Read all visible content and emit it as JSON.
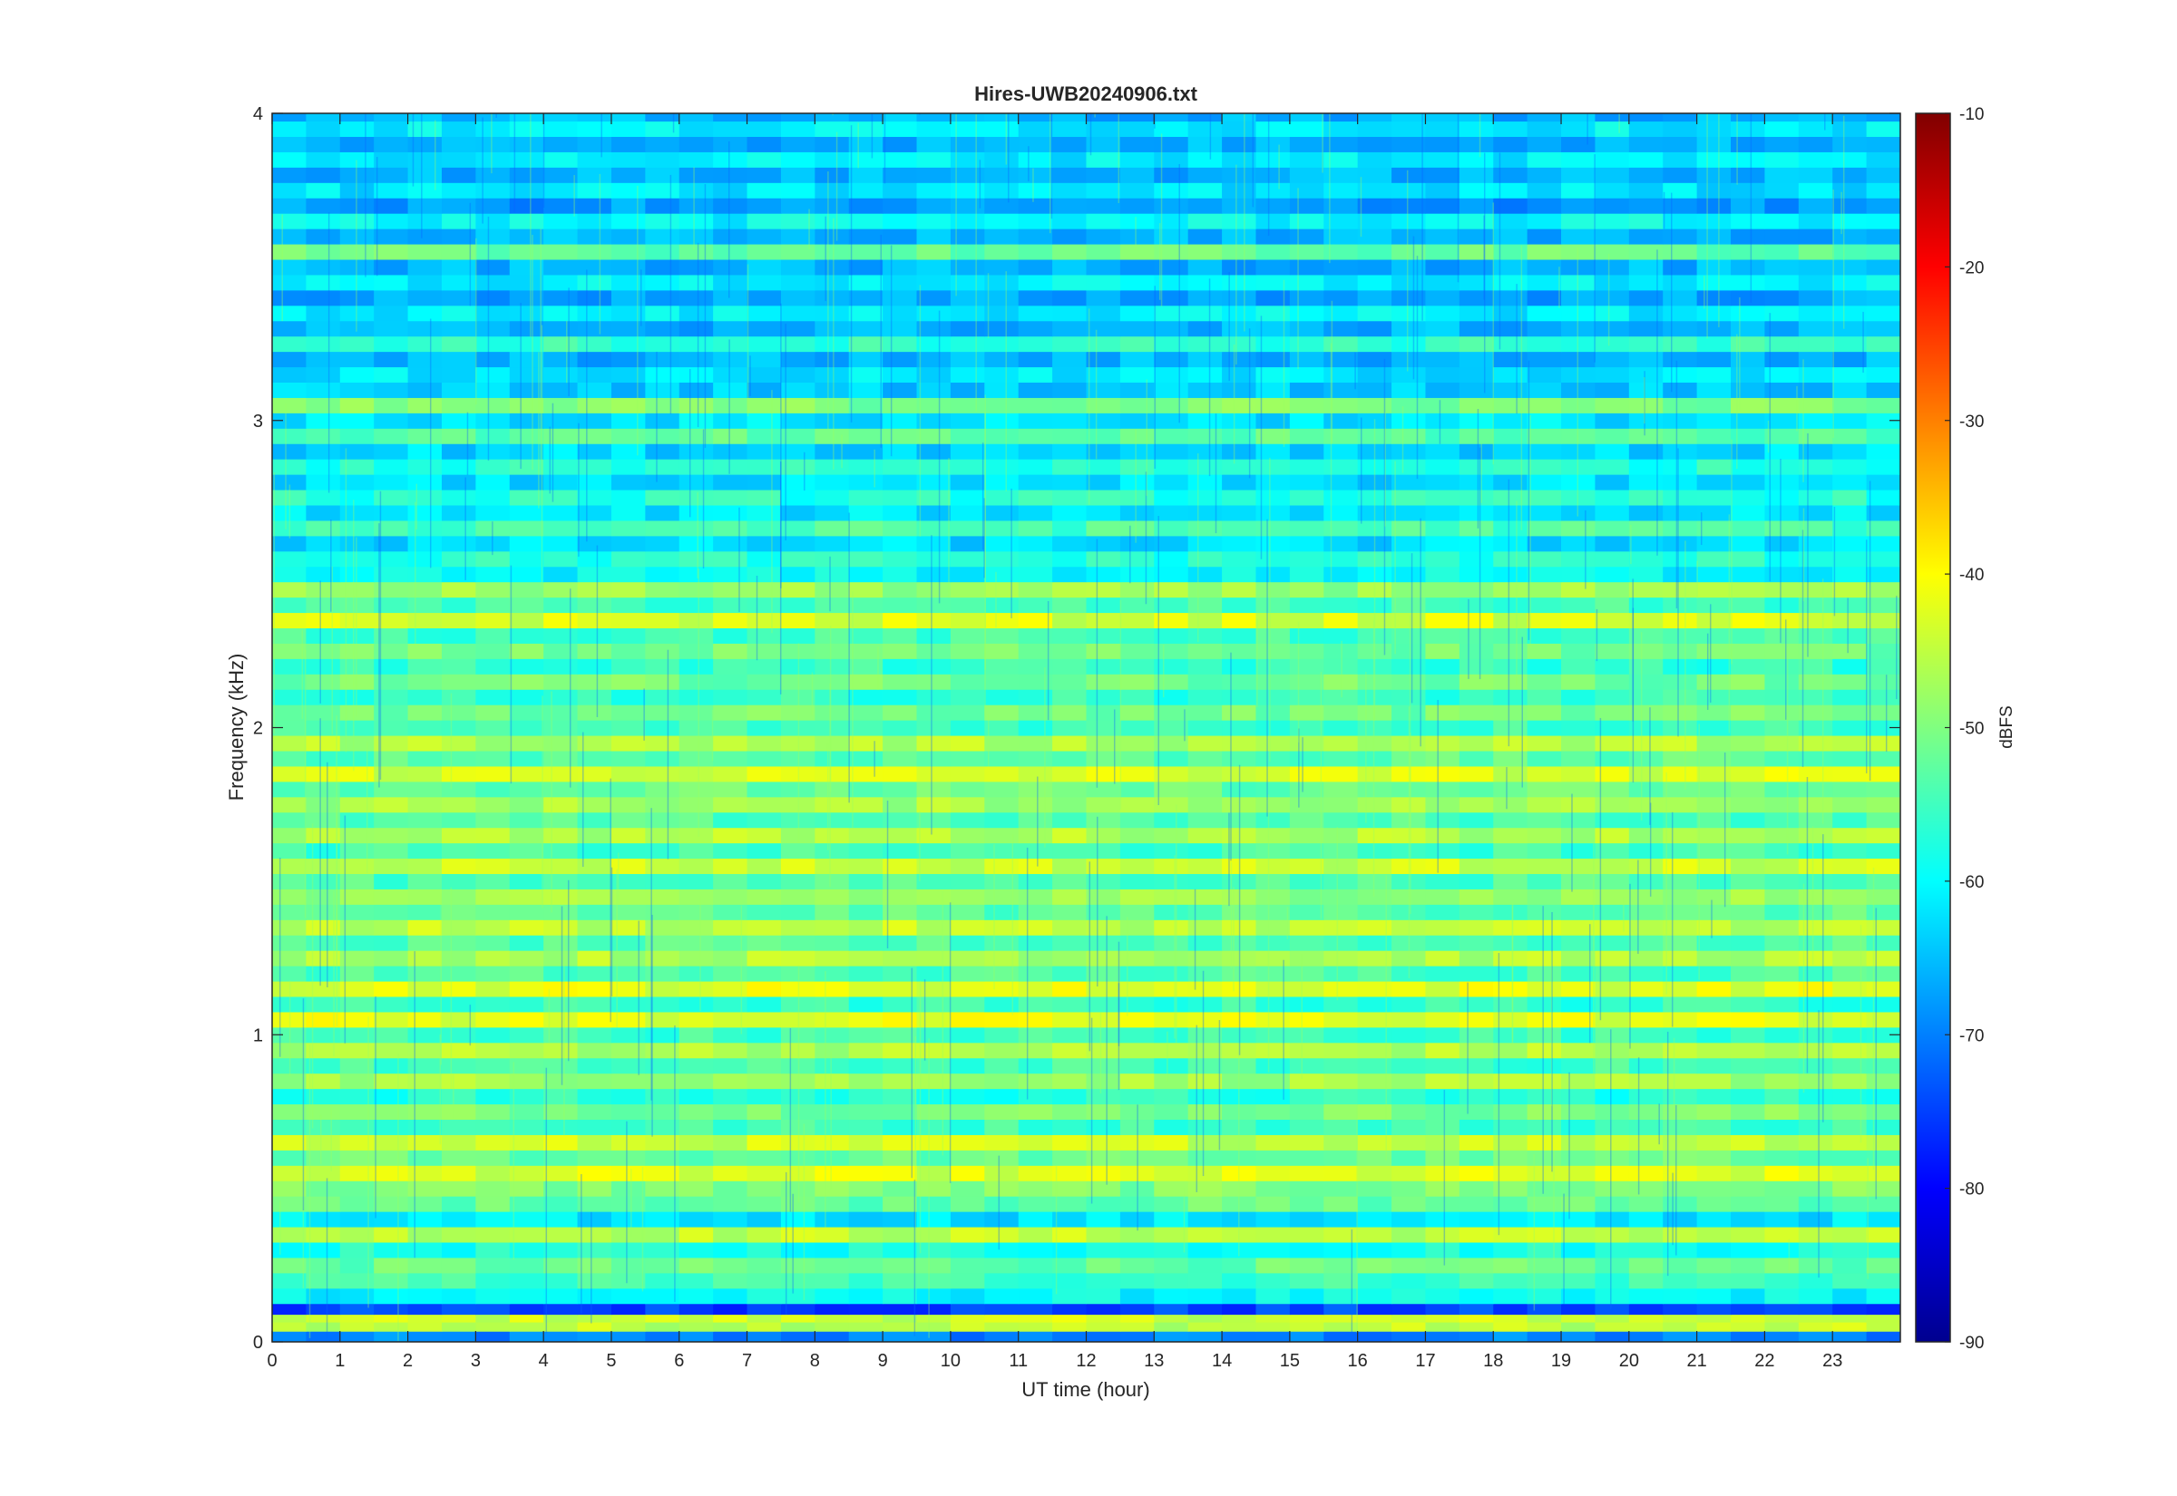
{
  "chart_data": {
    "type": "heatmap",
    "title": "Hires-UWB20240906.txt",
    "xlabel": "UT time (hour)",
    "ylabel": "Frequency (kHz)",
    "xlim": [
      0,
      24
    ],
    "ylim": [
      0,
      4
    ],
    "x_ticks": [
      0,
      1,
      2,
      3,
      4,
      5,
      6,
      7,
      8,
      9,
      10,
      11,
      12,
      13,
      14,
      15,
      16,
      17,
      18,
      19,
      20,
      21,
      22,
      23
    ],
    "y_ticks": [
      0,
      1,
      2,
      3,
      4
    ],
    "colorbar": {
      "label": "dBFS",
      "colormap": "jet",
      "clim": [
        -90,
        -10
      ],
      "ticks": [
        -10,
        -20,
        -30,
        -40,
        -50,
        -60,
        -70,
        -80,
        -90
      ],
      "stops": [
        "#00008f",
        "#0000ff",
        "#0080ff",
        "#00ffff",
        "#80ff80",
        "#ffff00",
        "#ff8000",
        "#ff0000",
        "#800000"
      ]
    },
    "grid": false,
    "legend": "none",
    "bands_note_free": true,
    "bands": [
      {
        "f": 0.02,
        "db": -70
      },
      {
        "f": 0.05,
        "db": -45
      },
      {
        "f": 0.08,
        "db": -44
      },
      {
        "f": 0.1,
        "db": -75
      },
      {
        "f": 0.15,
        "db": -60
      },
      {
        "f": 0.2,
        "db": -55
      },
      {
        "f": 0.25,
        "db": -52
      },
      {
        "f": 0.3,
        "db": -58
      },
      {
        "f": 0.35,
        "db": -45
      },
      {
        "f": 0.4,
        "db": -62
      },
      {
        "f": 0.45,
        "db": -52
      },
      {
        "f": 0.5,
        "db": -50
      },
      {
        "f": 0.55,
        "db": -43
      },
      {
        "f": 0.6,
        "db": -52
      },
      {
        "f": 0.65,
        "db": -44
      },
      {
        "f": 0.7,
        "db": -55
      },
      {
        "f": 0.75,
        "db": -50
      },
      {
        "f": 0.8,
        "db": -57
      },
      {
        "f": 0.85,
        "db": -47
      },
      {
        "f": 0.9,
        "db": -55
      },
      {
        "f": 0.95,
        "db": -46
      },
      {
        "f": 1.0,
        "db": -55
      },
      {
        "f": 1.05,
        "db": -42
      },
      {
        "f": 1.1,
        "db": -56
      },
      {
        "f": 1.15,
        "db": -42
      },
      {
        "f": 1.2,
        "db": -54
      },
      {
        "f": 1.25,
        "db": -46
      },
      {
        "f": 1.3,
        "db": -54
      },
      {
        "f": 1.35,
        "db": -45
      },
      {
        "f": 1.4,
        "db": -53
      },
      {
        "f": 1.45,
        "db": -48
      },
      {
        "f": 1.5,
        "db": -54
      },
      {
        "f": 1.55,
        "db": -44
      },
      {
        "f": 1.6,
        "db": -55
      },
      {
        "f": 1.65,
        "db": -46
      },
      {
        "f": 1.7,
        "db": -54
      },
      {
        "f": 1.75,
        "db": -47
      },
      {
        "f": 1.8,
        "db": -52
      },
      {
        "f": 1.85,
        "db": -43
      },
      {
        "f": 1.9,
        "db": -53
      },
      {
        "f": 1.95,
        "db": -46
      },
      {
        "f": 2.0,
        "db": -55
      },
      {
        "f": 2.05,
        "db": -51
      },
      {
        "f": 2.1,
        "db": -56
      },
      {
        "f": 2.15,
        "db": -51
      },
      {
        "f": 2.2,
        "db": -56
      },
      {
        "f": 2.25,
        "db": -51
      },
      {
        "f": 2.3,
        "db": -55
      },
      {
        "f": 2.35,
        "db": -43
      },
      {
        "f": 2.4,
        "db": -55
      },
      {
        "f": 2.45,
        "db": -48
      },
      {
        "f": 2.5,
        "db": -60
      },
      {
        "f": 2.55,
        "db": -57
      },
      {
        "f": 2.6,
        "db": -63
      },
      {
        "f": 2.65,
        "db": -54
      },
      {
        "f": 2.7,
        "db": -62
      },
      {
        "f": 2.75,
        "db": -57
      },
      {
        "f": 2.8,
        "db": -63
      },
      {
        "f": 2.85,
        "db": -57
      },
      {
        "f": 2.9,
        "db": -63
      },
      {
        "f": 2.95,
        "db": -53
      },
      {
        "f": 3.0,
        "db": -62
      },
      {
        "f": 3.05,
        "db": -50
      },
      {
        "f": 3.1,
        "db": -64
      },
      {
        "f": 3.15,
        "db": -62
      },
      {
        "f": 3.2,
        "db": -66
      },
      {
        "f": 3.25,
        "db": -56
      },
      {
        "f": 3.3,
        "db": -66
      },
      {
        "f": 3.35,
        "db": -61
      },
      {
        "f": 3.4,
        "db": -67
      },
      {
        "f": 3.45,
        "db": -61
      },
      {
        "f": 3.5,
        "db": -66
      },
      {
        "f": 3.55,
        "db": -52
      },
      {
        "f": 3.6,
        "db": -66
      },
      {
        "f": 3.65,
        "db": -60
      },
      {
        "f": 3.7,
        "db": -68
      },
      {
        "f": 3.75,
        "db": -62
      },
      {
        "f": 3.8,
        "db": -66
      },
      {
        "f": 3.85,
        "db": -61
      },
      {
        "f": 3.9,
        "db": -66
      },
      {
        "f": 3.95,
        "db": -61
      },
      {
        "f": 4.0,
        "db": -66
      }
    ]
  }
}
